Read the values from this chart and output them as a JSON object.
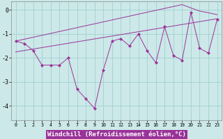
{
  "x": [
    0,
    1,
    2,
    3,
    4,
    5,
    6,
    7,
    8,
    9,
    10,
    11,
    12,
    13,
    14,
    15,
    16,
    17,
    18,
    19,
    20,
    21,
    22,
    23
  ],
  "oscillating": [
    -1.3,
    -1.4,
    -1.7,
    -2.3,
    -2.3,
    -2.3,
    -2.0,
    -3.3,
    -3.7,
    -4.1,
    -2.5,
    -1.3,
    -1.2,
    -1.5,
    -1.0,
    -1.7,
    -2.2,
    -0.7,
    -1.9,
    -2.1,
    -0.1,
    -1.6,
    -1.8,
    -0.4
  ],
  "trend_upper": [
    -1.3,
    -1.22,
    -1.14,
    -1.06,
    -0.98,
    -0.9,
    -0.82,
    -0.74,
    -0.66,
    -0.58,
    -0.5,
    -0.42,
    -0.34,
    -0.26,
    -0.18,
    -0.1,
    -0.02,
    0.06,
    0.14,
    0.22,
    0.08,
    -0.05,
    -0.12,
    -0.2
  ],
  "trend_lower": [
    -1.75,
    -1.69,
    -1.63,
    -1.57,
    -1.51,
    -1.45,
    -1.39,
    -1.33,
    -1.27,
    -1.21,
    -1.15,
    -1.09,
    -1.03,
    -0.97,
    -0.91,
    -0.85,
    -0.79,
    -0.73,
    -0.67,
    -0.61,
    -0.55,
    -0.49,
    -0.43,
    -0.37
  ],
  "color": "#993399",
  "bg_color": "#cce8e8",
  "grid_color": "#99cccc",
  "ylim": [
    -4.6,
    0.35
  ],
  "yticks": [
    0,
    -1,
    -2,
    -3,
    -4
  ],
  "xlim": [
    -0.5,
    23.5
  ]
}
